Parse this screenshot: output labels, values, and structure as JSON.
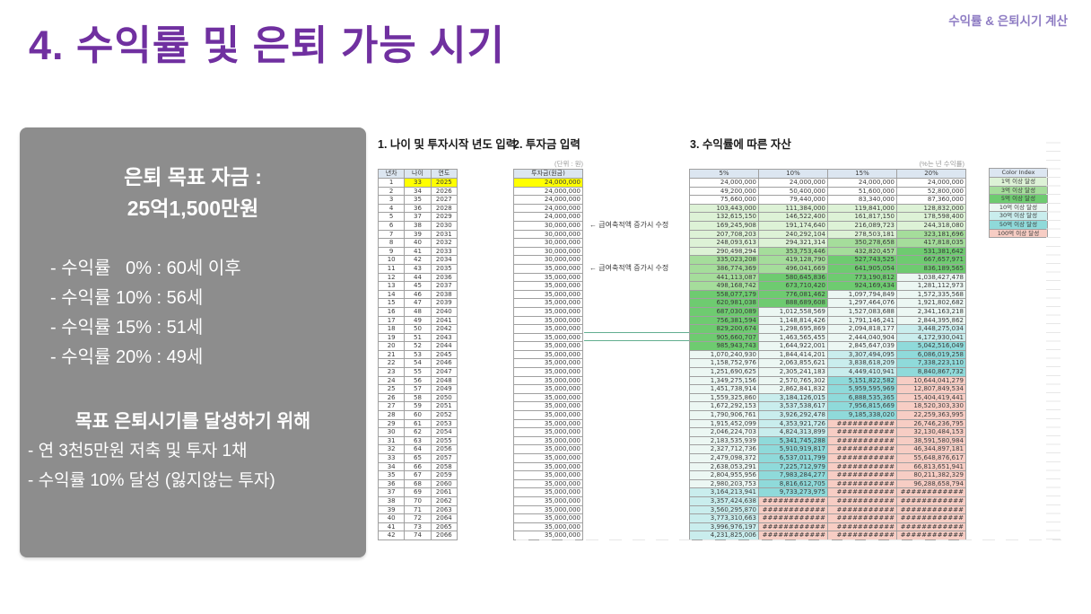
{
  "slide": {
    "title": "4. 수익률 및 은퇴 가능 시기",
    "corner_label": "수익률 & 은퇴시기 계산",
    "accent_color": "#7030a0"
  },
  "summary_box": {
    "heading_line1": "은퇴 목표 자금 :",
    "heading_line2": "25억1,500만원",
    "bullets": [
      "- 수익률   0% : 60세 이후",
      "- 수익률 10% : 56세",
      "- 수익률 15% : 51세",
      "- 수익률 20% : 49세"
    ],
    "goal_heading": "목표 은퇴시기를 달성하기 위해",
    "goal_bullets": [
      "- 연 3천5만원 저축 및 투자 1채",
      "- 수익률 10% 달성 (잃지않는 투자)"
    ]
  },
  "sheet": {
    "section1_title": "1. 나이 및 투자시작 년도 입력",
    "section2_title": "2. 투자금 입력",
    "section3_title": "3. 수익률에 따른 자산",
    "unit_note": "(단위 : 원)",
    "rate_note": "(%는 년 수익률)",
    "left_table": {
      "headers": [
        "년차",
        "나이",
        "연도"
      ],
      "rows": [
        [
          1,
          33,
          2025
        ],
        [
          2,
          34,
          2026
        ],
        [
          3,
          35,
          2027
        ],
        [
          4,
          36,
          2028
        ],
        [
          5,
          37,
          2029
        ],
        [
          6,
          38,
          2030
        ],
        [
          7,
          39,
          2031
        ],
        [
          8,
          40,
          2032
        ],
        [
          9,
          41,
          2033
        ],
        [
          10,
          42,
          2034
        ],
        [
          11,
          43,
          2035
        ],
        [
          12,
          44,
          2036
        ],
        [
          13,
          45,
          2037
        ],
        [
          14,
          46,
          2038
        ],
        [
          15,
          47,
          2039
        ],
        [
          16,
          48,
          2040
        ],
        [
          17,
          49,
          2041
        ],
        [
          18,
          50,
          2042
        ],
        [
          19,
          51,
          2043
        ],
        [
          20,
          52,
          2044
        ],
        [
          21,
          53,
          2045
        ],
        [
          22,
          54,
          2046
        ],
        [
          23,
          55,
          2047
        ],
        [
          24,
          56,
          2048
        ],
        [
          25,
          57,
          2049
        ],
        [
          26,
          58,
          2050
        ],
        [
          27,
          59,
          2051
        ],
        [
          28,
          60,
          2052
        ],
        [
          29,
          61,
          2053
        ],
        [
          30,
          62,
          2054
        ],
        [
          31,
          63,
          2055
        ],
        [
          32,
          64,
          2056
        ],
        [
          33,
          65,
          2057
        ],
        [
          34,
          66,
          2058
        ],
        [
          35,
          67,
          2059
        ],
        [
          36,
          68,
          2060
        ],
        [
          37,
          69,
          2061
        ],
        [
          38,
          70,
          2062
        ],
        [
          39,
          71,
          2063
        ],
        [
          40,
          72,
          2064
        ],
        [
          41,
          73,
          2065
        ],
        [
          42,
          74,
          2066
        ]
      ]
    },
    "invest_table": {
      "header": "투자금(원금)",
      "values": [
        "24,000,000",
        "24,000,000",
        "24,000,000",
        "24,000,000",
        "24,000,000",
        "30,000,000",
        "30,000,000",
        "30,000,000",
        "30,000,000",
        "30,000,000",
        "35,000,000",
        "35,000,000",
        "35,000,000",
        "35,000,000",
        "35,000,000",
        "35,000,000",
        "35,000,000",
        "35,000,000",
        "35,000,000",
        "35,000,000",
        "35,000,000",
        "35,000,000",
        "35,000,000",
        "35,000,000",
        "35,000,000",
        "35,000,000",
        "35,000,000",
        "35,000,000",
        "35,000,000",
        "35,000,000",
        "35,000,000",
        "35,000,000",
        "35,000,000",
        "35,000,000",
        "35,000,000",
        "35,000,000",
        "35,000,000",
        "35,000,000",
        "35,000,000",
        "35,000,000",
        "35,000,000",
        "35,000,000"
      ]
    },
    "annotations": [
      {
        "row": 6,
        "text": "← 급여축적액 증가시 수정"
      },
      {
        "row": 11,
        "text": "← 급여축적액 증가시 수정"
      }
    ],
    "asset_table": {
      "headers": [
        "5%",
        "10%",
        "15%",
        "20%"
      ],
      "rows": [
        [
          "24,000,000",
          "24,000,000",
          "24,000,000",
          "24,000,000"
        ],
        [
          "49,200,000",
          "50,400,000",
          "51,600,000",
          "52,800,000"
        ],
        [
          "75,660,000",
          "79,440,000",
          "83,340,000",
          "87,360,000"
        ],
        [
          "103,443,000",
          "111,384,000",
          "119,841,000",
          "128,832,000"
        ],
        [
          "132,615,150",
          "146,522,400",
          "161,817,150",
          "178,598,400"
        ],
        [
          "169,245,908",
          "191,174,640",
          "216,089,723",
          "244,318,080"
        ],
        [
          "207,708,203",
          "240,292,104",
          "278,503,181",
          "323,181,696"
        ],
        [
          "248,093,613",
          "294,321,314",
          "350,278,658",
          "417,818,035"
        ],
        [
          "290,498,294",
          "353,753,446",
          "432,820,457",
          "531,381,642"
        ],
        [
          "335,023,208",
          "419,128,790",
          "527,743,525",
          "667,657,971"
        ],
        [
          "386,774,369",
          "496,041,669",
          "641,905,054",
          "836,189,565"
        ],
        [
          "441,113,087",
          "580,645,836",
          "773,190,812",
          "1,038,427,478"
        ],
        [
          "498,168,742",
          "673,710,420",
          "924,169,434",
          "1,281,112,973"
        ],
        [
          "558,077,179",
          "776,081,462",
          "1,097,794,849",
          "1,572,335,568"
        ],
        [
          "620,981,038",
          "888,689,608",
          "1,297,464,076",
          "1,921,802,682"
        ],
        [
          "687,030,089",
          "1,012,558,569",
          "1,527,083,688",
          "2,341,163,218"
        ],
        [
          "756,381,594",
          "1,148,814,426",
          "1,791,146,241",
          "2,844,395,862"
        ],
        [
          "829,200,674",
          "1,298,695,869",
          "2,094,818,177",
          "3,448,275,034"
        ],
        [
          "905,660,707",
          "1,463,565,455",
          "2,444,040,904",
          "4,172,930,041"
        ],
        [
          "985,943,743",
          "1,644,922,001",
          "2,845,647,039",
          "5,042,516,049"
        ],
        [
          "1,070,240,930",
          "1,844,414,201",
          "3,307,494,095",
          "6,086,019,258"
        ],
        [
          "1,158,752,976",
          "2,063,855,621",
          "3,838,618,209",
          "7,338,223,110"
        ],
        [
          "1,251,690,625",
          "2,305,241,183",
          "4,449,410,941",
          "8,840,867,732"
        ],
        [
          "1,349,275,156",
          "2,570,765,302",
          "5,151,822,582",
          "10,644,041,279"
        ],
        [
          "1,451,738,914",
          "2,862,841,832",
          "5,959,595,969",
          "12,807,849,534"
        ],
        [
          "1,559,325,860",
          "3,184,126,015",
          "6,888,535,365",
          "15,404,419,441"
        ],
        [
          "1,672,292,153",
          "3,537,538,617",
          "7,956,815,669",
          "18,520,303,330"
        ],
        [
          "1,790,906,761",
          "3,926,292,478",
          "9,185,338,020",
          "22,259,363,995"
        ],
        [
          "1,915,452,099",
          "4,353,921,726",
          "###########",
          "26,746,236,795"
        ],
        [
          "2,046,224,703",
          "4,824,313,899",
          "###########",
          "32,130,484,153"
        ],
        [
          "2,183,535,939",
          "5,341,745,288",
          "###########",
          "38,591,580,984"
        ],
        [
          "2,327,712,736",
          "5,910,919,817",
          "###########",
          "46,344,897,181"
        ],
        [
          "2,479,098,372",
          "6,537,011,799",
          "###########",
          "55,648,876,617"
        ],
        [
          "2,638,053,291",
          "7,225,712,979",
          "###########",
          "66,813,651,941"
        ],
        [
          "2,804,955,956",
          "7,983,284,277",
          "###########",
          "80,211,382,329"
        ],
        [
          "2,980,203,753",
          "8,816,612,705",
          "###########",
          "96,288,658,794"
        ],
        [
          "3,164,213,941",
          "9,733,273,975",
          "###########",
          "############"
        ],
        [
          "3,357,424,638",
          "############",
          "###########",
          "############"
        ],
        [
          "3,560,295,870",
          "############",
          "###########",
          "############"
        ],
        [
          "3,773,310,663",
          "############",
          "###########",
          "############"
        ],
        [
          "3,996,976,197",
          "############",
          "###########",
          "############"
        ],
        [
          "4,231,825,006",
          "############",
          "###########",
          "############"
        ]
      ]
    },
    "color_index": {
      "header": "Color Index",
      "items": [
        {
          "label": "1억 이상 달성",
          "min": 100000000,
          "color": "#ddf2d6"
        },
        {
          "label": "3억 이상 달성",
          "min": 300000000,
          "color": "#a5dd9b"
        },
        {
          "label": "5억 이상 달성",
          "min": 500000000,
          "color": "#6ecb70"
        },
        {
          "label": "10억 이상 달성",
          "min": 1000000000,
          "color": "#ecf7f3"
        },
        {
          "label": "30억 이상 달성",
          "min": 3000000000,
          "color": "#c9eded"
        },
        {
          "label": "50억 이상 달성",
          "min": 5000000000,
          "color": "#8fdada"
        },
        {
          "label": "100억 이상 달성",
          "min": 10000000000,
          "color": "#f7cdc4"
        }
      ]
    },
    "highlight_color": "#ffff00",
    "header_bg": "#dce6f1"
  }
}
